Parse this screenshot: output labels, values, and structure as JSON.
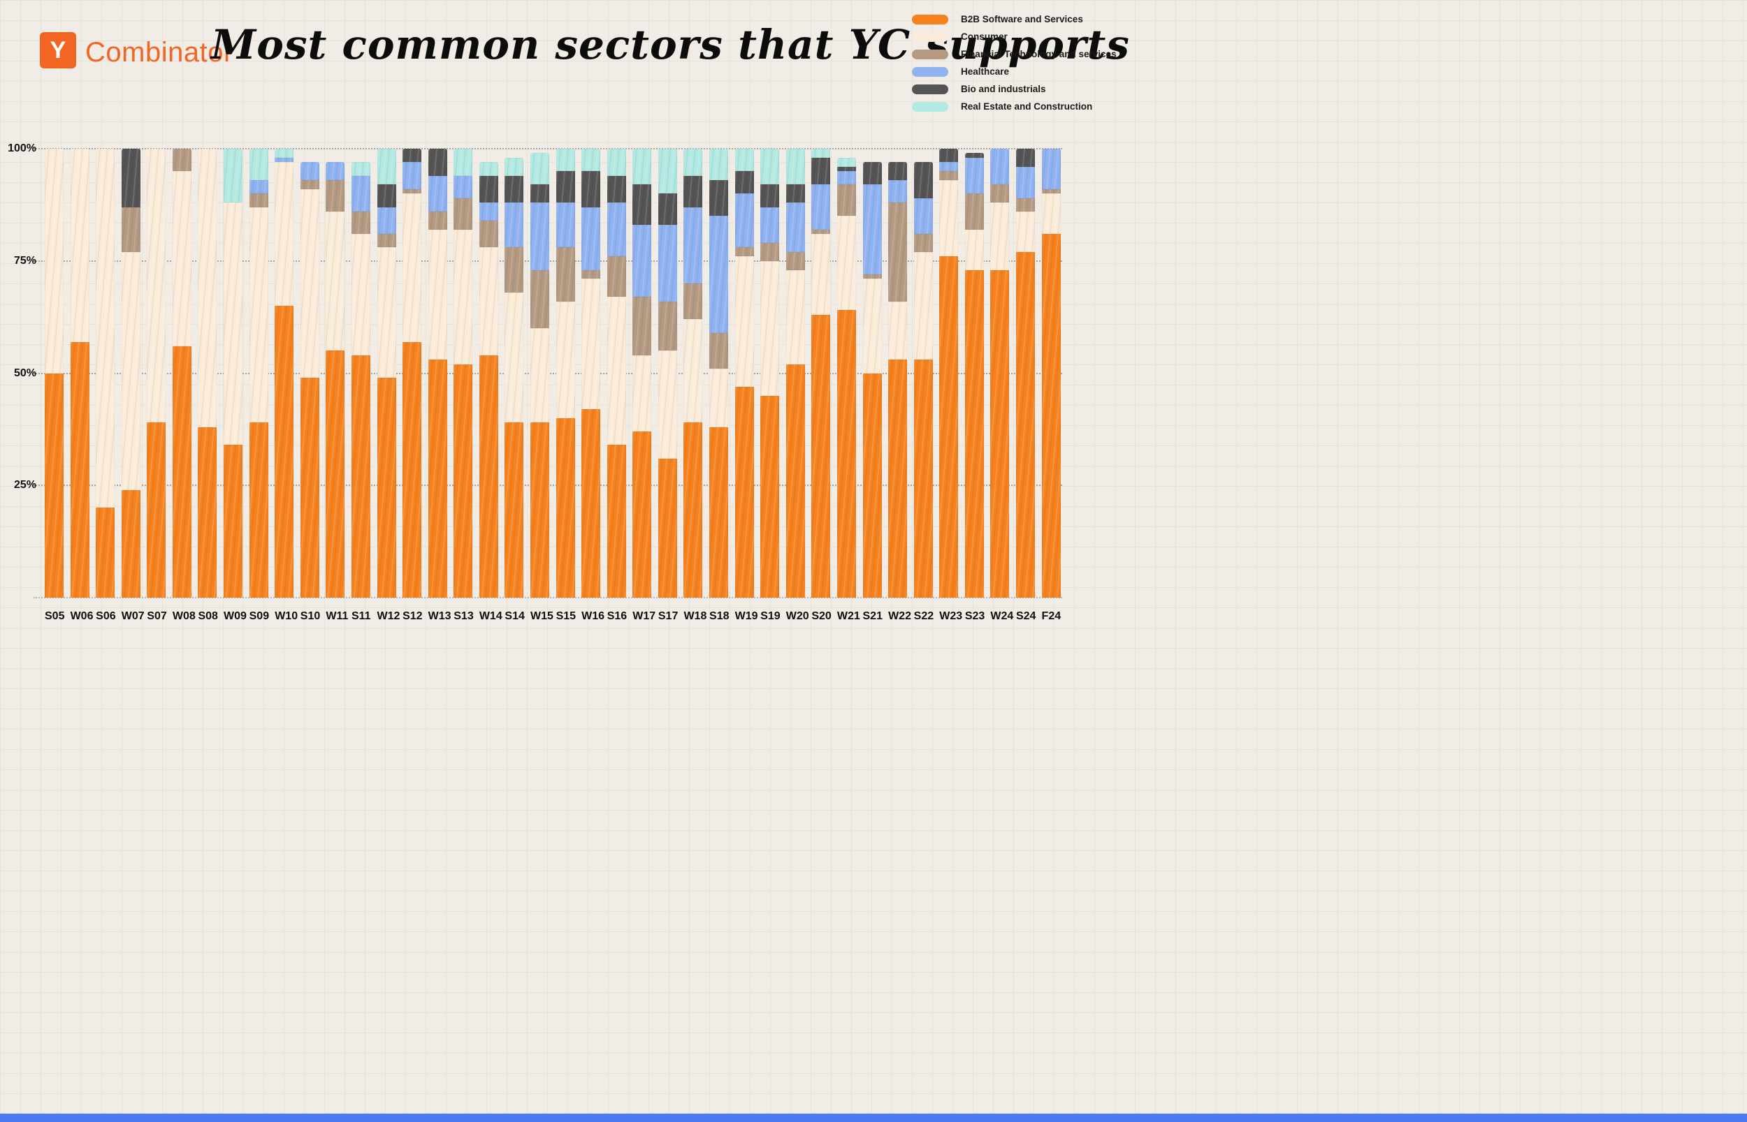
{
  "header": {
    "logo_letter": "Y",
    "wordmark": "Combinator"
  },
  "chart_data": {
    "type": "bar",
    "stacked": true,
    "stack_unit": "percent",
    "title": "Most common sectors that YC supports",
    "xlabel": "",
    "ylabel": "",
    "ylim": [
      0,
      100
    ],
    "yticks": [
      25,
      50,
      75,
      100
    ],
    "ytick_labels": [
      "25%",
      "50%",
      "75%",
      "100%"
    ],
    "grid": "dashed-horizontal",
    "legend_position": "top-right",
    "categories": [
      "S05",
      "W06",
      "S06",
      "W07",
      "S07",
      "W08",
      "S08",
      "W09",
      "S09",
      "W10",
      "S10",
      "W11",
      "S11",
      "W12",
      "S12",
      "W13",
      "S13",
      "W14",
      "S14",
      "W15",
      "S15",
      "W16",
      "S16",
      "W17",
      "S17",
      "W18",
      "S18",
      "W19",
      "S19",
      "W20",
      "S20",
      "W21",
      "S21",
      "W22",
      "S22",
      "W23",
      "S23",
      "W24",
      "S24",
      "F24"
    ],
    "series": [
      {
        "name": "B2B Software and Services",
        "color": "#f5821f",
        "values": [
          50,
          57,
          20,
          24,
          39,
          56,
          38,
          34,
          39,
          65,
          49,
          55,
          54,
          49,
          57,
          53,
          52,
          54,
          39,
          39,
          40,
          42,
          34,
          37,
          31,
          39,
          38,
          47,
          45,
          52,
          63,
          64,
          50,
          53,
          53,
          76,
          73,
          73,
          77,
          81
        ]
      },
      {
        "name": "Consumer",
        "color": "#fbecd9",
        "values": [
          50,
          43,
          80,
          53,
          61,
          39,
          62,
          54,
          48,
          32,
          42,
          31,
          27,
          29,
          33,
          29,
          30,
          24,
          29,
          21,
          26,
          29,
          33,
          17,
          24,
          23,
          13,
          29,
          30,
          21,
          18,
          21,
          21,
          13,
          24,
          17,
          9,
          15,
          9,
          9
        ]
      },
      {
        "name": "Financial Technology and services",
        "color": "#b49a82",
        "values": [
          0,
          0,
          0,
          10,
          0,
          5,
          0,
          0,
          3,
          0,
          2,
          7,
          5,
          3,
          1,
          4,
          7,
          6,
          10,
          13,
          12,
          2,
          9,
          13,
          11,
          8,
          8,
          2,
          4,
          4,
          1,
          7,
          1,
          22,
          4,
          2,
          8,
          4,
          3,
          1
        ]
      },
      {
        "name": "Healthcare",
        "color": "#8fb2f0",
        "values": [
          0,
          0,
          0,
          0,
          0,
          0,
          0,
          0,
          3,
          1,
          4,
          4,
          8,
          6,
          6,
          8,
          5,
          4,
          10,
          15,
          10,
          14,
          12,
          16,
          17,
          17,
          26,
          12,
          8,
          11,
          10,
          3,
          20,
          5,
          8,
          2,
          8,
          8,
          7,
          9
        ]
      },
      {
        "name": "Bio and industrials",
        "color": "#545454",
        "values": [
          0,
          0,
          0,
          13,
          0,
          0,
          0,
          0,
          0,
          0,
          0,
          0,
          0,
          5,
          3,
          6,
          0,
          6,
          6,
          4,
          7,
          8,
          6,
          9,
          7,
          7,
          8,
          5,
          5,
          4,
          6,
          1,
          5,
          4,
          8,
          3,
          1,
          0,
          4,
          0
        ]
      },
      {
        "name": "Real Estate and Construction",
        "color": "#b2e9e3",
        "values": [
          0,
          0,
          0,
          0,
          0,
          0,
          0,
          12,
          7,
          2,
          0,
          0,
          3,
          8,
          0,
          0,
          6,
          3,
          4,
          7,
          5,
          5,
          6,
          8,
          10,
          6,
          7,
          5,
          8,
          8,
          2,
          2,
          0,
          0,
          0,
          0,
          0,
          0,
          0,
          0
        ]
      }
    ]
  },
  "colors": {
    "background": "#f1ede6",
    "accent_orange": "#f26522",
    "bottom_strip": "#4b7bf0"
  }
}
